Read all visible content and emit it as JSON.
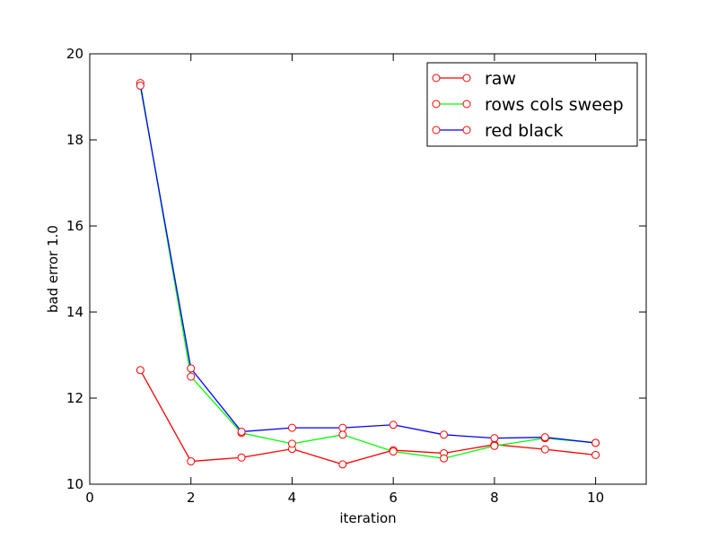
{
  "chart_data": {
    "type": "line",
    "title": "",
    "xlabel": "iteration",
    "ylabel": "bad error 1.0",
    "xlim": [
      0,
      11
    ],
    "ylim": [
      10,
      20
    ],
    "xticks": [
      0,
      2,
      4,
      6,
      8,
      10
    ],
    "yticks": [
      10,
      12,
      14,
      16,
      18,
      20
    ],
    "legend_position": "top-right",
    "marker": "circle-open",
    "marker_color": "#ff0000",
    "x": [
      1,
      2,
      3,
      4,
      5,
      6,
      7,
      8,
      9,
      10
    ],
    "series": [
      {
        "name": "raw",
        "color": "#ff0000",
        "values": [
          12.65,
          10.53,
          10.62,
          10.82,
          10.46,
          10.79,
          10.72,
          10.92,
          10.81,
          10.68
        ]
      },
      {
        "name": "rows cols sweep",
        "color": "#00ff00",
        "values": [
          19.32,
          12.5,
          11.19,
          10.94,
          11.15,
          10.76,
          10.6,
          10.89,
          11.07,
          10.96
        ]
      },
      {
        "name": "red black",
        "color": "#0000ff",
        "values": [
          19.26,
          12.69,
          11.22,
          11.31,
          11.31,
          11.38,
          11.15,
          11.07,
          11.09,
          10.96
        ]
      }
    ]
  }
}
